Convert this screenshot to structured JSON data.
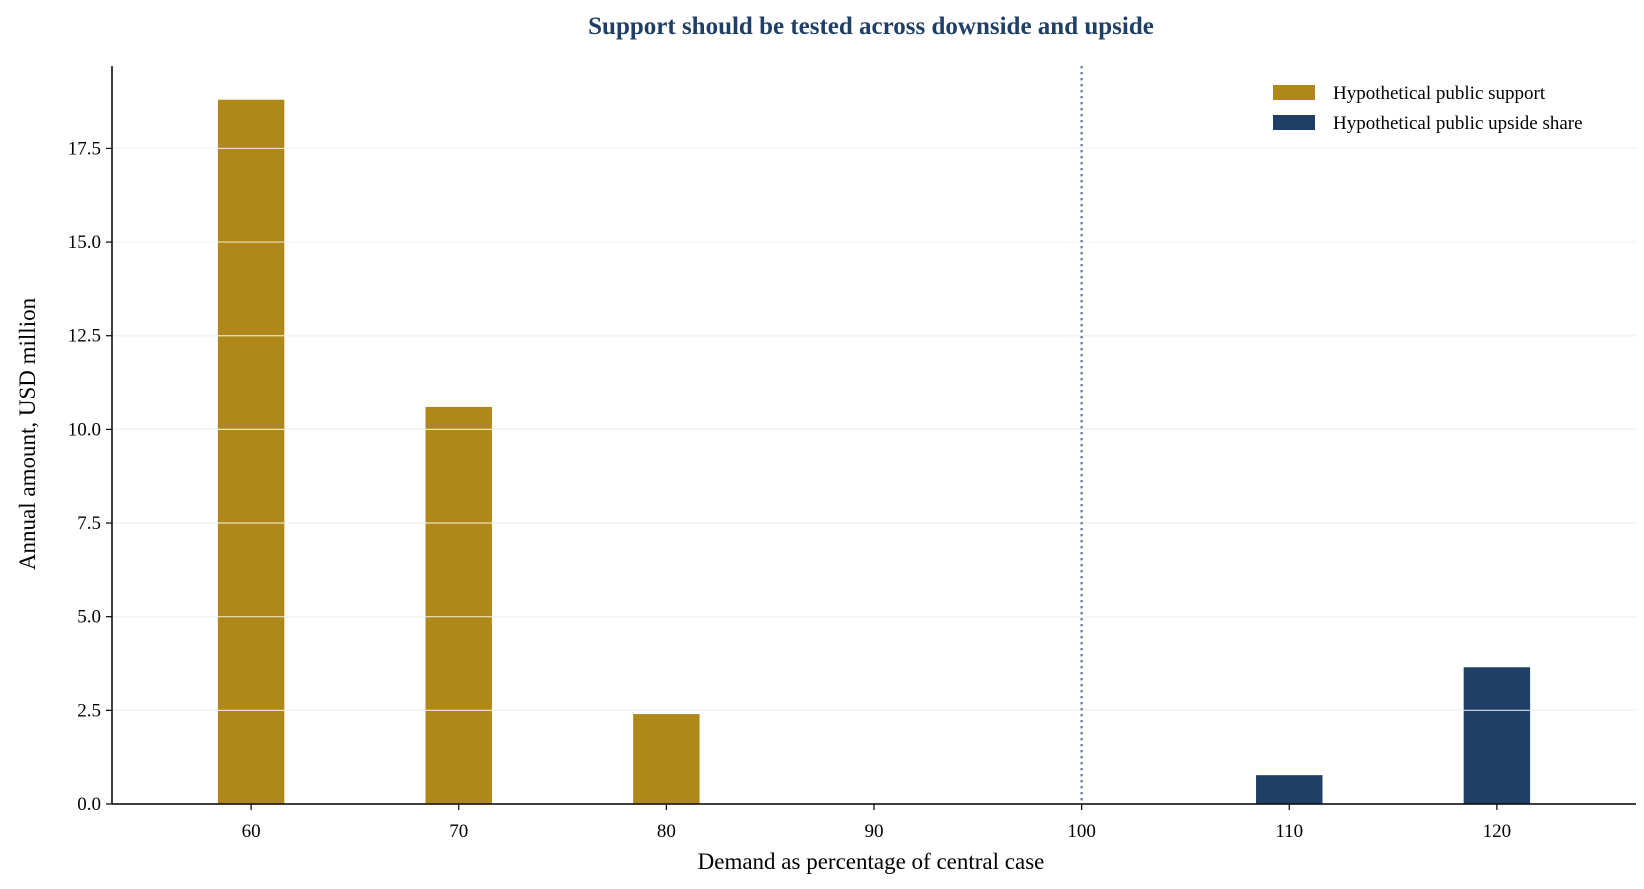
{
  "chart_data": {
    "type": "bar",
    "title": "Support should be tested across downside and upside",
    "xlabel": "Demand as percentage of central case",
    "ylabel": "Annual amount, USD million",
    "x_ticks": [
      "60",
      "70",
      "80",
      "90",
      "100",
      "110",
      "120"
    ],
    "y_ticks": [
      "0.0",
      "2.5",
      "5.0",
      "7.5",
      "10.0",
      "12.5",
      "15.0",
      "17.5"
    ],
    "xlim": [
      53.3,
      126.7
    ],
    "ylim": [
      0,
      19.7
    ],
    "grid": "horizontal",
    "legend_position": "top-right",
    "reference_line": {
      "x": 100,
      "style": "dotted",
      "color": "#6b82a8"
    },
    "series": [
      {
        "name": "Hypothetical public support",
        "color": "#b08819",
        "points": [
          {
            "x": 60,
            "y": 18.8
          },
          {
            "x": 70,
            "y": 10.6
          },
          {
            "x": 80,
            "y": 2.4
          }
        ]
      },
      {
        "name": "Hypothetical public upside share",
        "color": "#203f66",
        "points": [
          {
            "x": 110,
            "y": 0.77
          },
          {
            "x": 120,
            "y": 3.65
          }
        ]
      }
    ],
    "colors": {
      "title": "#203f66",
      "grid": "#cdd4e6",
      "axis": "#000000"
    }
  }
}
